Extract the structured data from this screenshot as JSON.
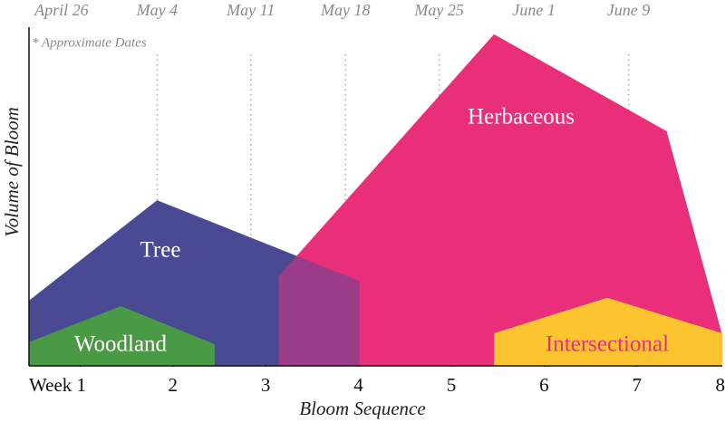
{
  "chart_data": {
    "type": "area",
    "x_label": "Bloom Sequence",
    "y_label": "Volume of Bloom",
    "note": "* Approximate Dates",
    "xlim": [
      0.45,
      7.92
    ],
    "ylim": [
      0,
      100
    ],
    "xticks": [
      {
        "value": 1,
        "label": "Week 1"
      },
      2,
      3,
      4,
      5,
      6,
      7,
      8
    ],
    "x2ticks": [
      {
        "value": 0.8,
        "label": "April 26"
      },
      {
        "value": 1.83,
        "label": "May 4"
      },
      {
        "value": 2.84,
        "label": "May 11"
      },
      {
        "value": 3.86,
        "label": "May 18"
      },
      {
        "value": 4.87,
        "label": "May 25"
      },
      {
        "value": 5.89,
        "label": "June 1"
      },
      {
        "value": 6.91,
        "label": "June 9"
      }
    ],
    "series": [
      {
        "name": "Tree",
        "color": "#4a4a94",
        "x": [
          0.45,
          0.45,
          1.83,
          4.01,
          4.01
        ],
        "values": [
          0,
          19.3,
          48.9,
          25.1,
          0
        ]
      },
      {
        "name": "Herbaceous",
        "color": "#ea2f7a",
        "x": [
          3.14,
          3.14,
          5.46,
          7.32,
          7.92,
          7.92
        ],
        "values": [
          0,
          26.5,
          97.9,
          69.3,
          9.1,
          0
        ]
      },
      {
        "name": "Woodland",
        "color": "#4a9a45",
        "x": [
          0.45,
          0.45,
          1.44,
          2.45,
          2.45
        ],
        "values": [
          0,
          7,
          17.6,
          6.4,
          0
        ]
      },
      {
        "name": "Intersectional",
        "color": "#fcc530",
        "x": [
          5.46,
          5.46,
          6.68,
          7.92,
          7.92
        ],
        "values": [
          0,
          9.6,
          20.1,
          9.6,
          0
        ]
      }
    ]
  }
}
